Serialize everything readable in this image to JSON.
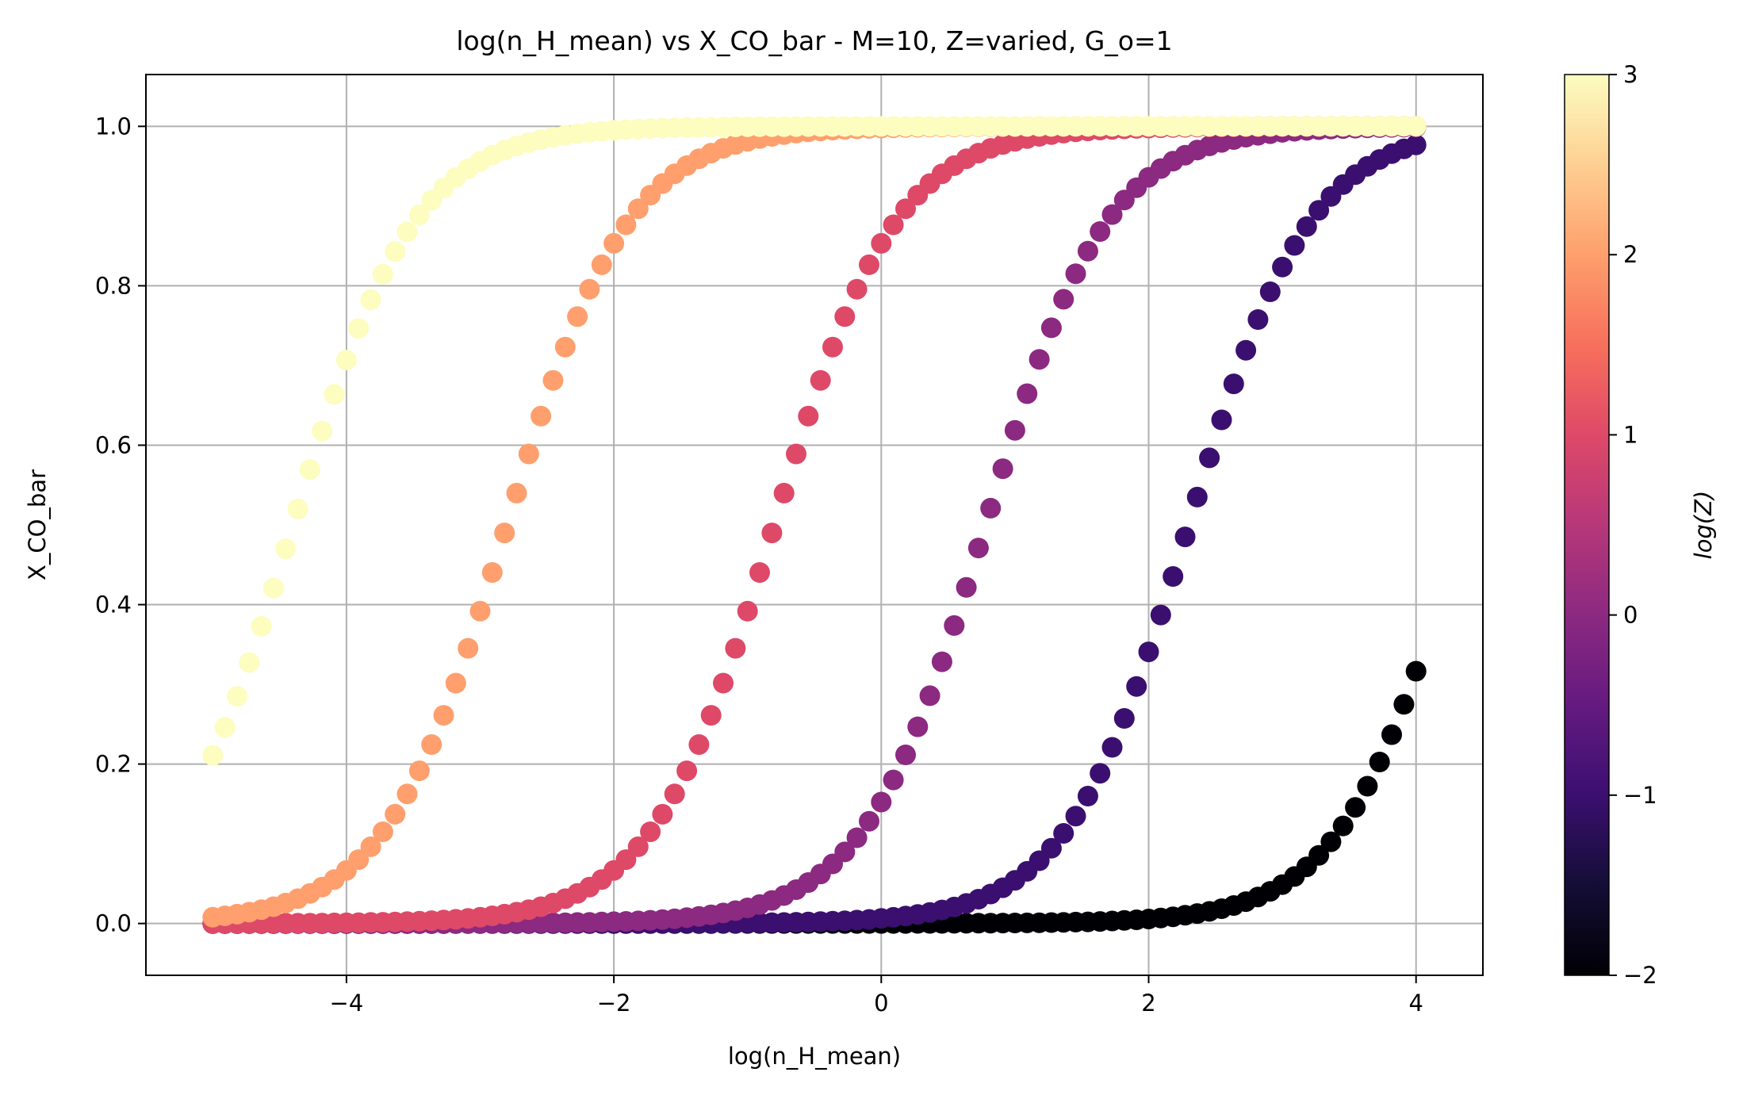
{
  "chart_data": {
    "type": "scatter",
    "title": "log(n_H_mean) vs X_CO_bar - M=10, Z=varied, G_o=1",
    "xlabel": "log(n_H_mean)",
    "ylabel": "X_CO_bar",
    "xlim": [
      -5.5,
      4.5
    ],
    "ylim": [
      -0.065,
      1.065
    ],
    "xticks": [
      -4,
      -2,
      0,
      2,
      4
    ],
    "xtick_labels": [
      "−4",
      "−2",
      "0",
      "2",
      "4"
    ],
    "yticks": [
      0.0,
      0.2,
      0.4,
      0.6,
      0.8,
      1.0
    ],
    "ytick_labels": [
      "0.0",
      "0.2",
      "0.4",
      "0.6",
      "0.8",
      "1.0"
    ],
    "grid": true,
    "colormap": "magma",
    "colorbar": {
      "label": "log(Z)",
      "range": [
        -2,
        3
      ],
      "ticks": [
        -2,
        -1,
        0,
        1,
        2,
        3
      ],
      "tick_labels": [
        "−2",
        "−1",
        "0",
        "1",
        "2",
        "3"
      ]
    },
    "x_range": [
      -5,
      4
    ],
    "points_per_series": 100,
    "series": [
      {
        "logZ": -2,
        "color": "#000004",
        "curve": "logistic",
        "midpoint": 4.35,
        "steepness": 2.2
      },
      {
        "logZ": -1,
        "color": "#3b0f70",
        "curve": "logistic",
        "midpoint": 2.3,
        "steepness": 2.2
      },
      {
        "logZ": 0,
        "color": "#8c2981",
        "curve": "logistic",
        "midpoint": 0.78,
        "steepness": 2.2
      },
      {
        "logZ": 1,
        "color": "#de4968",
        "curve": "logistic",
        "midpoint": -0.8,
        "steepness": 2.2
      },
      {
        "logZ": 2,
        "color": "#fe9f6d",
        "curve": "logistic",
        "midpoint": -2.8,
        "steepness": 2.2
      },
      {
        "logZ": 3,
        "color": "#fcfdbf",
        "curve": "logistic",
        "midpoint": -4.4,
        "steepness": 2.2
      }
    ]
  }
}
